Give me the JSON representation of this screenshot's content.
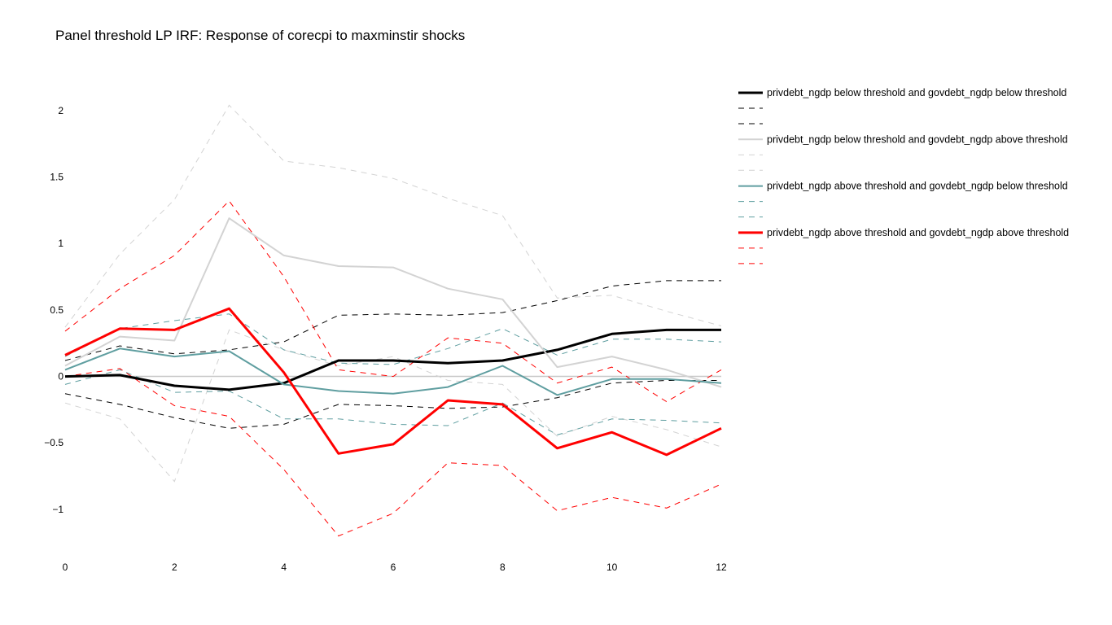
{
  "chart_data": {
    "type": "line",
    "title": "Panel threshold LP IRF: Response of corecpi to maxminstir shocks",
    "xlabel": "",
    "ylabel": "",
    "xlim": [
      0,
      12
    ],
    "ylim": [
      -1.38,
      2.25
    ],
    "x_ticks": [
      0,
      2,
      4,
      6,
      8,
      10,
      12
    ],
    "y_ticks": [
      -1,
      -0.5,
      0,
      0.5,
      1,
      1.5,
      2
    ],
    "y_tick_labels": [
      "−1",
      "−0.5",
      "0",
      "0.5",
      "1",
      "1.5",
      "2"
    ],
    "zero_line": true,
    "x": [
      0,
      1,
      2,
      3,
      4,
      5,
      6,
      7,
      8,
      9,
      10,
      11,
      12
    ],
    "series": [
      {
        "name": "privdebt_ngdp below threshold and govdebt_ngdp below threshold",
        "color": "#000000",
        "values": [
          0.0,
          0.01,
          -0.07,
          -0.1,
          -0.05,
          0.12,
          0.12,
          0.1,
          0.12,
          0.2,
          0.32,
          0.35,
          0.35
        ],
        "lower": [
          -0.13,
          -0.21,
          -0.31,
          -0.39,
          -0.36,
          -0.21,
          -0.22,
          -0.24,
          -0.23,
          -0.16,
          -0.05,
          -0.03,
          -0.03
        ],
        "upper": [
          0.12,
          0.23,
          0.17,
          0.2,
          0.26,
          0.46,
          0.47,
          0.46,
          0.48,
          0.57,
          0.68,
          0.72,
          0.72
        ]
      },
      {
        "name": "privdebt_ngdp below threshold and govdebt_ngdp above threshold",
        "color": "#d3d3d3",
        "values": [
          0.08,
          0.3,
          0.27,
          1.19,
          0.91,
          0.83,
          0.82,
          0.66,
          0.58,
          0.07,
          0.15,
          0.05,
          -0.08
        ],
        "lower": [
          -0.2,
          -0.32,
          -0.79,
          0.35,
          0.2,
          0.08,
          0.15,
          -0.03,
          -0.06,
          -0.45,
          -0.3,
          -0.4,
          -0.53
        ],
        "upper": [
          0.37,
          0.92,
          1.33,
          2.04,
          1.62,
          1.57,
          1.49,
          1.34,
          1.21,
          0.59,
          0.61,
          0.49,
          0.38
        ]
      },
      {
        "name": "privdebt_ngdp above threshold and govdebt_ngdp below threshold",
        "color": "#5f9ea0",
        "values": [
          0.05,
          0.21,
          0.15,
          0.19,
          -0.06,
          -0.11,
          -0.13,
          -0.08,
          0.08,
          -0.14,
          -0.02,
          -0.02,
          -0.05
        ],
        "lower": [
          -0.06,
          0.05,
          -0.12,
          -0.11,
          -0.32,
          -0.32,
          -0.36,
          -0.37,
          -0.2,
          -0.44,
          -0.32,
          -0.33,
          -0.35
        ],
        "upper": [
          0.15,
          0.36,
          0.42,
          0.47,
          0.2,
          0.1,
          0.09,
          0.21,
          0.36,
          0.16,
          0.28,
          0.28,
          0.26
        ]
      },
      {
        "name": "privdebt_ngdp above threshold and govdebt_ngdp above threshold",
        "color": "#ff0000",
        "values": [
          0.16,
          0.36,
          0.35,
          0.51,
          0.03,
          -0.58,
          -0.51,
          -0.18,
          -0.21,
          -0.54,
          -0.42,
          -0.59,
          -0.39
        ],
        "lower": [
          0.0,
          0.06,
          -0.22,
          -0.3,
          -0.7,
          -1.2,
          -1.03,
          -0.65,
          -0.67,
          -1.01,
          -0.91,
          -0.99,
          -0.81
        ],
        "upper": [
          0.34,
          0.66,
          0.91,
          1.32,
          0.75,
          0.05,
          0.0,
          0.29,
          0.25,
          -0.05,
          0.07,
          -0.19,
          0.05
        ]
      }
    ]
  }
}
